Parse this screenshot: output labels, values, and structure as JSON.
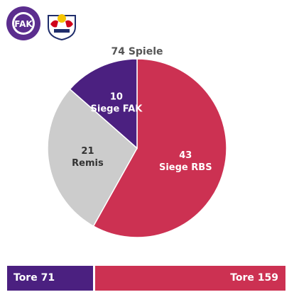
{
  "logos": {
    "fak": {
      "name": "FK Austria Wien",
      "color": "#5b2d8e"
    },
    "rbs": {
      "name": "Red Bull Salzburg",
      "color": "#d0021b"
    }
  },
  "chart_data": {
    "type": "pie",
    "title": "74 Spiele",
    "total": 74,
    "slices": [
      {
        "value": 43,
        "label": "Siege RBS",
        "color": "#cc3152",
        "text_color": "#ffffff"
      },
      {
        "value": 21,
        "label": "Remis",
        "color": "#cccccc",
        "text_color": "#333333"
      },
      {
        "value": 10,
        "label": "Siege FAK",
        "color": "#4b2080",
        "text_color": "#ffffff"
      }
    ],
    "goals": [
      {
        "label": "Tore 71",
        "value": 71,
        "color": "#4b2080"
      },
      {
        "label": "Tore 159",
        "value": 159,
        "color": "#cc3152"
      }
    ]
  }
}
